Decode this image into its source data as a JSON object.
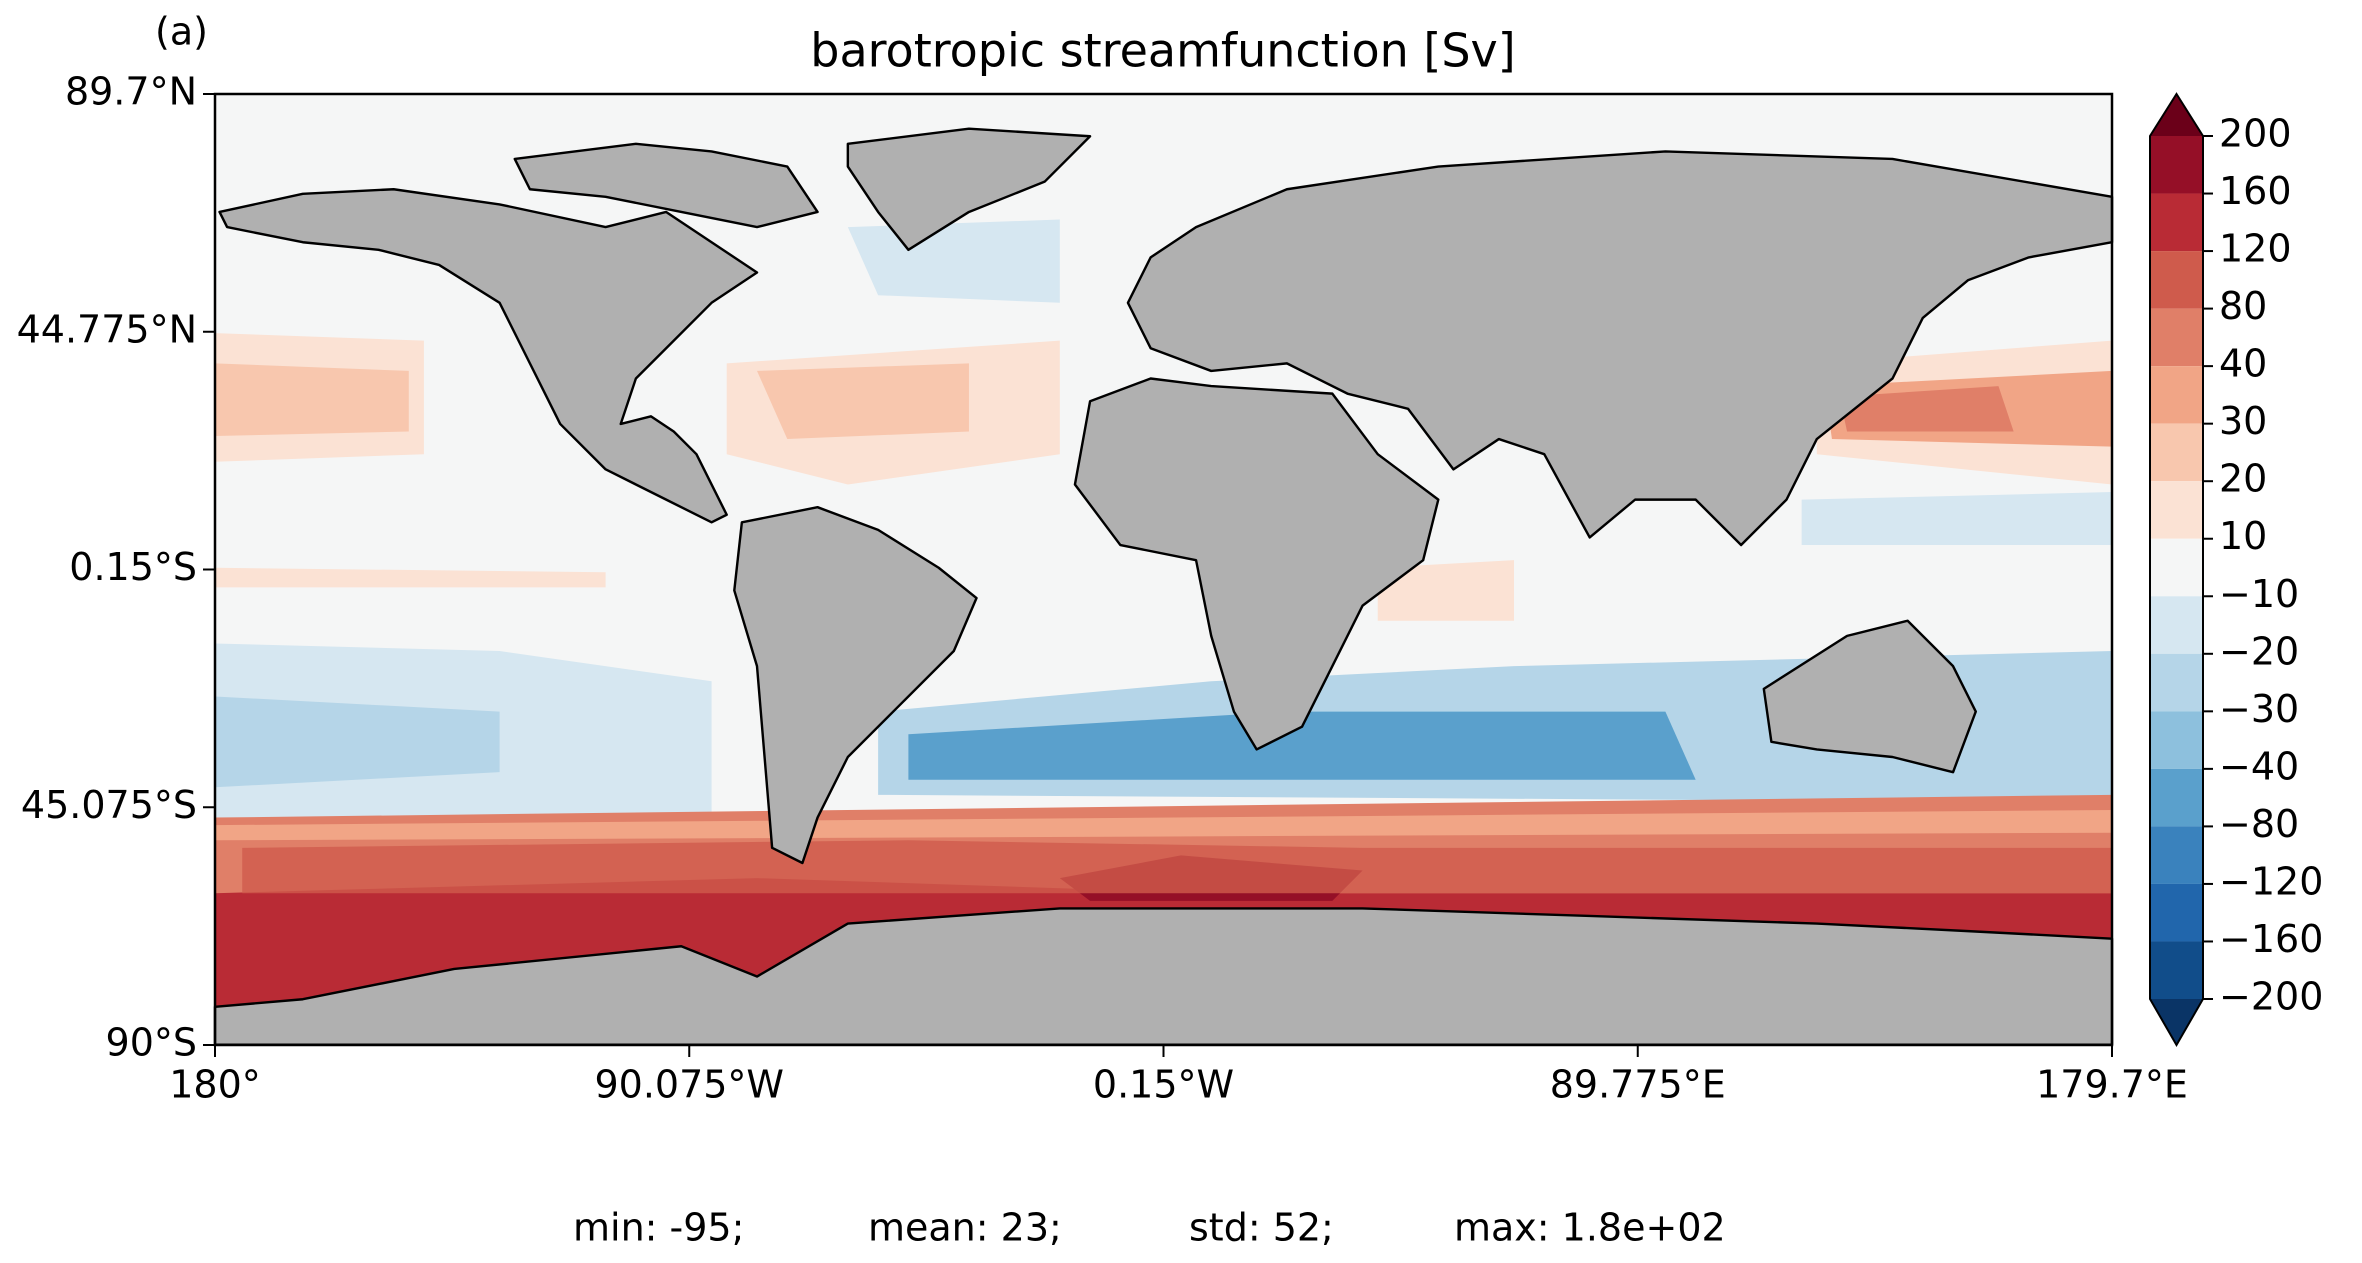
{
  "chart_data": {
    "type": "map",
    "panel_label": "(a)",
    "title": "barotropic streamfunction [Sv]",
    "xlim": [
      -180,
      179.7
    ],
    "ylim": [
      -90,
      89.7
    ],
    "xticks": [
      {
        "value": -180,
        "label": "180°"
      },
      {
        "value": -90.075,
        "label": "90.075°W"
      },
      {
        "value": -0.15,
        "label": "0.15°W"
      },
      {
        "value": 89.775,
        "label": "89.775°E"
      },
      {
        "value": 179.7,
        "label": "179.7°E"
      }
    ],
    "yticks": [
      {
        "value": 89.7,
        "label": "89.7°N"
      },
      {
        "value": 44.775,
        "label": "44.775°N"
      },
      {
        "value": -0.15,
        "label": "0.15°S"
      },
      {
        "value": -45.075,
        "label": "45.075°S"
      },
      {
        "value": -90,
        "label": "90°S"
      }
    ],
    "colorbar": {
      "ticks": [
        200,
        160,
        120,
        80,
        40,
        30,
        20,
        10,
        {
          "value": -10,
          "label": "−10"
        },
        {
          "value": -20,
          "label": "−20"
        },
        {
          "value": -30,
          "label": "−30"
        },
        {
          "value": -40,
          "label": "−40"
        },
        {
          "value": -80,
          "label": "−80"
        },
        {
          "value": -120,
          "label": "−120"
        },
        {
          "value": -160,
          "label": "−160"
        },
        {
          "value": -200,
          "label": "−200"
        }
      ],
      "colors": [
        "#950f27",
        "#b92b35",
        "#cf5b4c",
        "#e07f68",
        "#f1a586",
        "#f8c7ae",
        "#fbe2d4",
        "#f5f6f6",
        "#d6e7f1",
        "#b5d5e8",
        "#8dc0dd",
        "#5aa0cc",
        "#3a82bd",
        "#2166ac",
        "#114d8a"
      ],
      "over_color": "#6b0019",
      "under_color": "#0a3466"
    },
    "stats": [
      "min: -95;",
      "mean: 23;",
      "std: 52;",
      "max: 1.8e+02"
    ]
  }
}
